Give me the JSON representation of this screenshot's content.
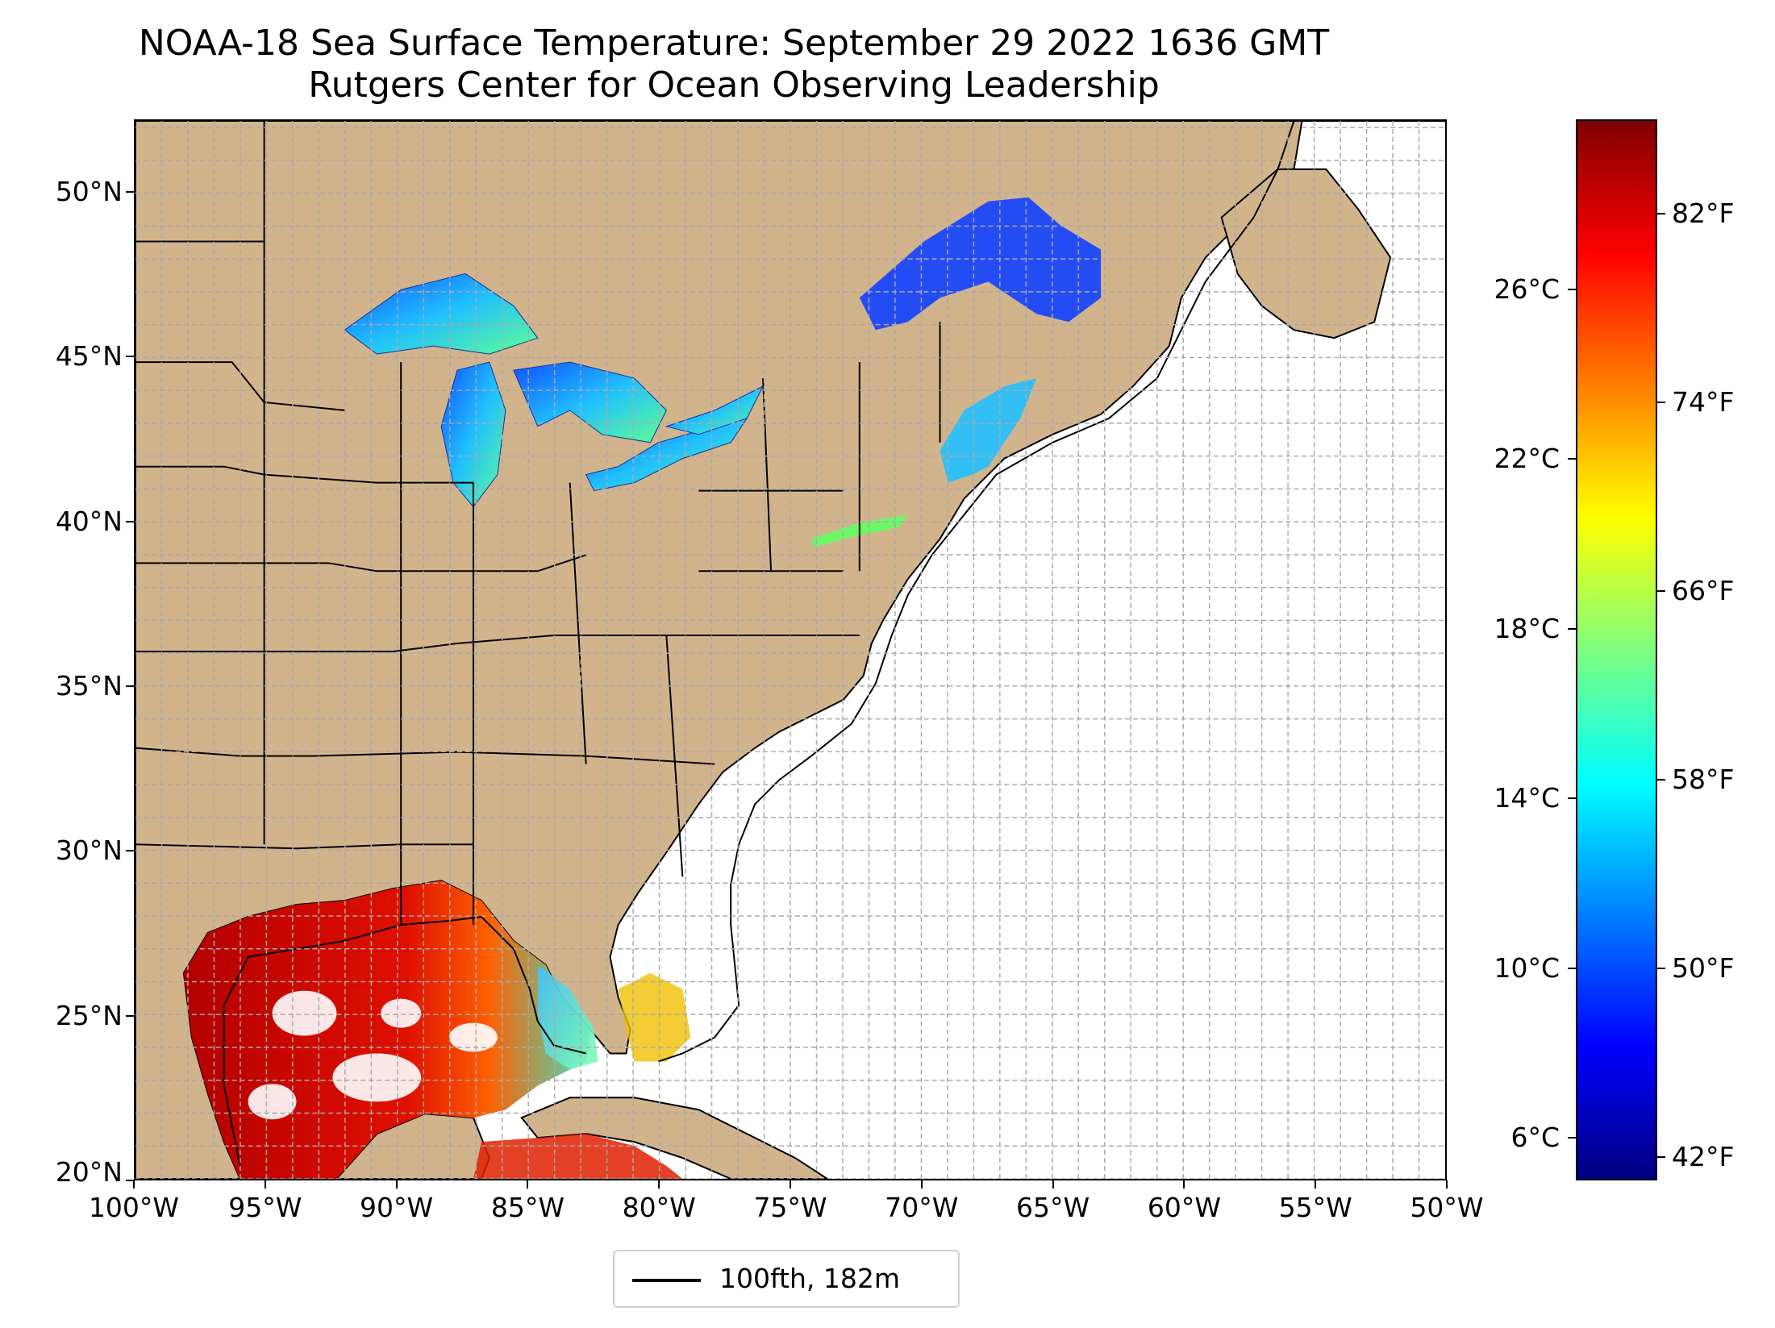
{
  "title": {
    "line1": "NOAA-18 Sea Surface Temperature: September 29 2022 1636 GMT",
    "line2": "Rutgers Center for Ocean Observing Leadership"
  },
  "map": {
    "lon_range": [
      -100,
      -50
    ],
    "lat_range": [
      20,
      52.2
    ],
    "land_color": "#d2b48c",
    "ocean_color": "#ffffff",
    "grid": true,
    "lat_ticks": [
      {
        "value": 20,
        "label": "20°N"
      },
      {
        "value": 25,
        "label": "25°N"
      },
      {
        "value": 30,
        "label": "30°N"
      },
      {
        "value": 35,
        "label": "35°N"
      },
      {
        "value": 40,
        "label": "40°N"
      },
      {
        "value": 45,
        "label": "45°N"
      },
      {
        "value": 50,
        "label": "50°N"
      }
    ],
    "lon_ticks": [
      {
        "value": -100,
        "label": "100°W"
      },
      {
        "value": -95,
        "label": "95°W"
      },
      {
        "value": -90,
        "label": "90°W"
      },
      {
        "value": -85,
        "label": "85°W"
      },
      {
        "value": -80,
        "label": "80°W"
      },
      {
        "value": -75,
        "label": "75°W"
      },
      {
        "value": -70,
        "label": "70°W"
      },
      {
        "value": -65,
        "label": "65°W"
      },
      {
        "value": -60,
        "label": "60°W"
      },
      {
        "value": -55,
        "label": "55°W"
      },
      {
        "value": -50,
        "label": "50°W"
      }
    ]
  },
  "legend": {
    "label": "100fth, 182m",
    "line_color": "#000000"
  },
  "colorbar": {
    "colormap": "jet",
    "min_c": 5,
    "max_c": 30,
    "stops": [
      "#00007f",
      "#0000ff",
      "#007fff",
      "#00ffff",
      "#7fff7f",
      "#ffff00",
      "#ff7f00",
      "#ff0000",
      "#7f0000"
    ],
    "celsius_ticks": [
      {
        "value": 6,
        "label": "6°C"
      },
      {
        "value": 10,
        "label": "10°C"
      },
      {
        "value": 14,
        "label": "14°C"
      },
      {
        "value": 18,
        "label": "18°C"
      },
      {
        "value": 22,
        "label": "22°C"
      },
      {
        "value": 26,
        "label": "26°C"
      }
    ],
    "fahrenheit_ticks": [
      {
        "value": 42,
        "label": "42°F"
      },
      {
        "value": 50,
        "label": "50°F"
      },
      {
        "value": 58,
        "label": "58°F"
      },
      {
        "value": 66,
        "label": "66°F"
      },
      {
        "value": 74,
        "label": "74°F"
      },
      {
        "value": 82,
        "label": "82°F"
      }
    ]
  }
}
